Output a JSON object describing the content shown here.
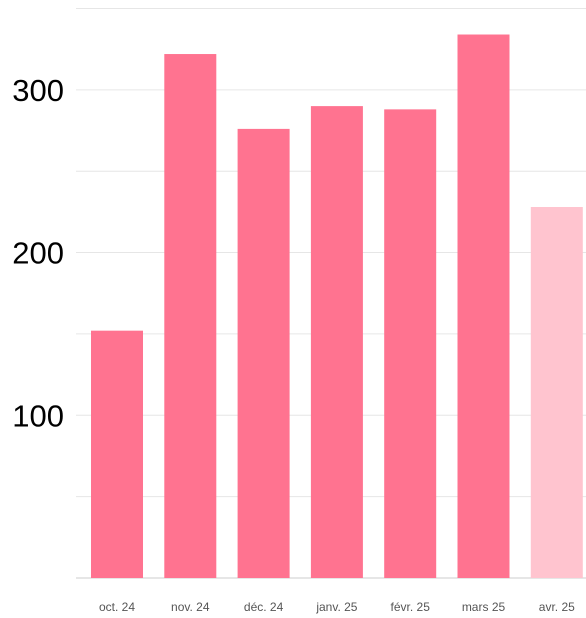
{
  "chart_data": {
    "type": "bar",
    "title": "",
    "xlabel": "",
    "ylabel": "",
    "categories": [
      "oct. 24",
      "nov. 24",
      "déc. 24",
      "janv. 25",
      "févr. 25",
      "mars 25",
      "avr. 25"
    ],
    "values": [
      152,
      322,
      276,
      290,
      288,
      334,
      228
    ],
    "highlighted": [
      true,
      true,
      true,
      true,
      true,
      true,
      false
    ],
    "ylim": [
      0,
      350
    ],
    "yticks": [
      100,
      200,
      300
    ],
    "yticklabels": [
      "100",
      "200",
      "300"
    ],
    "gridlines": [
      50,
      100,
      150,
      200,
      250,
      300,
      350
    ],
    "grid": true,
    "legend": "none",
    "colors": {
      "bar": "#ff7390",
      "bar_faded": "#ffc4cf",
      "grid": "#e6e6e6",
      "baseline": "#cccccc"
    }
  }
}
